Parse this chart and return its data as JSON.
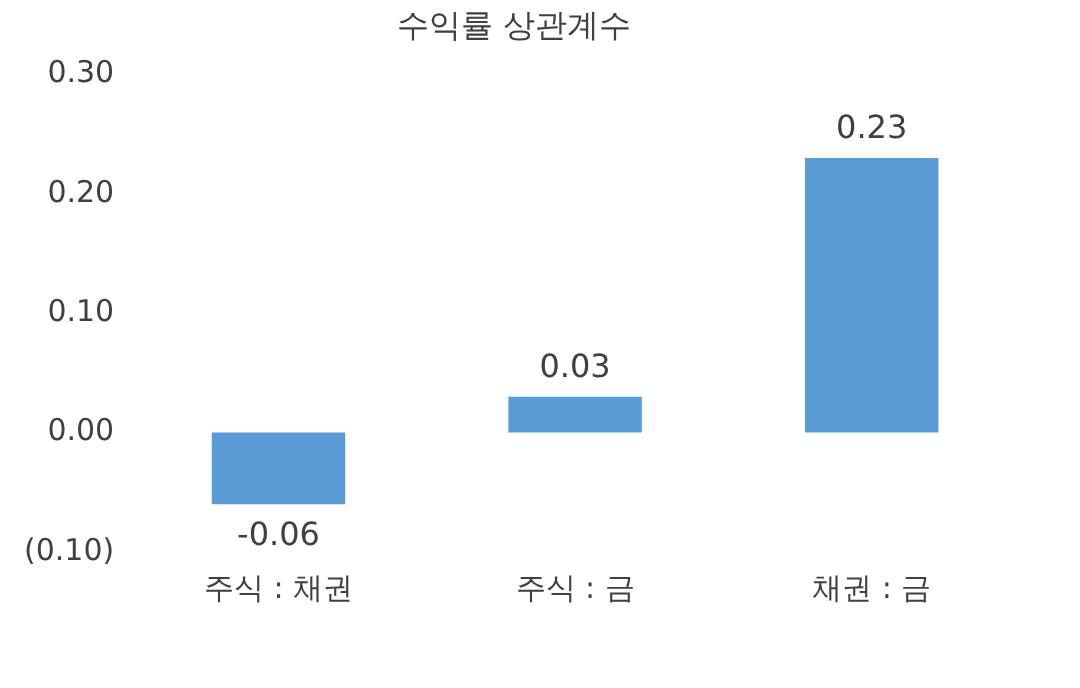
{
  "chart_data": {
    "type": "bar",
    "title": "수익률 상관계수",
    "categories": [
      "주식 : 채권",
      "주식 : 금",
      "채권 : 금"
    ],
    "values": [
      -0.06,
      0.03,
      0.23
    ],
    "color": "#5b9bd5",
    "value_labels": [
      "-0.06",
      "0.03",
      "0.23"
    ],
    "ylim": [
      -0.1,
      0.3
    ],
    "yticks": [
      {
        "value": 0.3,
        "label": "0.30"
      },
      {
        "value": 0.2,
        "label": "0.20"
      },
      {
        "value": 0.1,
        "label": "0.10"
      },
      {
        "value": 0,
        "label": "0.00"
      },
      {
        "value": -0.1,
        "label": "(0.10)"
      }
    ],
    "grid": false,
    "legend": false
  }
}
